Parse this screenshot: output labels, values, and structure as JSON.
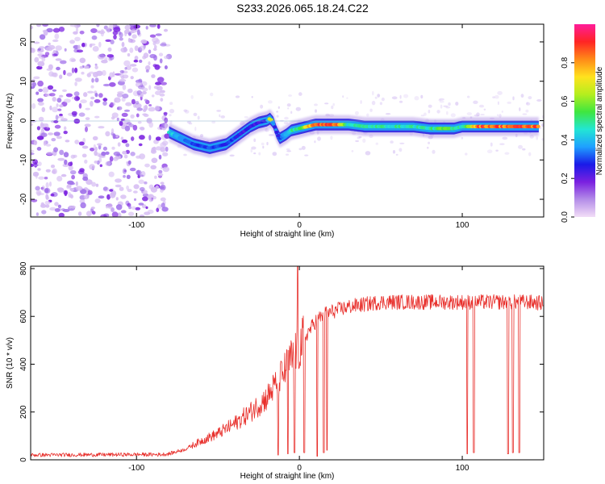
{
  "title": "S233.2026.065.18.24.C22",
  "colors": {
    "snr_line": "#e8302c",
    "colorbar_stops": [
      "#f2ddf7",
      "#b48de8",
      "#7a20e0",
      "#1a1ae8",
      "#1fa0ff",
      "#22e6d4",
      "#3fe63f",
      "#b5ee1e",
      "#ffe21e",
      "#ff8a18",
      "#ff2424",
      "#ff1c9a"
    ]
  },
  "chart_data": [
    {
      "type": "heatmap",
      "title": "",
      "xlabel": "Height of straight line (km)",
      "ylabel": "Frequency (Hz)",
      "xlim": [
        -165,
        150
      ],
      "ylim": [
        -24.5,
        24.5
      ],
      "xticks": [
        -100,
        0,
        100
      ],
      "xtick_labels": [
        "-100",
        "0",
        "100"
      ],
      "yticks": [
        20,
        10,
        0,
        -10,
        -20
      ],
      "ytick_labels": [
        "20",
        "10",
        "0",
        "-10",
        "-20"
      ],
      "colorbar": {
        "label": "Normalized spectral amplitude",
        "range": [
          0,
          1
        ],
        "ticks": [
          0.0,
          0.2,
          0.4,
          0.6,
          0.8
        ],
        "tick_labels": [
          "0.0",
          "0.2",
          "0.4",
          "0.6",
          "0.8"
        ]
      },
      "noise_region_x": [
        -165,
        -80
      ],
      "ridge": {
        "x": [
          -80,
          -75,
          -70,
          -65,
          -60,
          -55,
          -50,
          -45,
          -40,
          -35,
          -30,
          -25,
          -20,
          -18,
          -16,
          -14,
          -12,
          -10,
          -8,
          -5,
          0,
          5,
          10,
          15,
          20,
          30,
          40,
          50,
          60,
          70,
          80,
          90,
          95,
          100,
          110,
          120,
          130,
          140,
          147
        ],
        "freq": [
          -3,
          -4,
          -5,
          -6,
          -6.5,
          -7,
          -6.5,
          -6,
          -4.5,
          -3,
          -1.5,
          -0.5,
          0,
          0.5,
          -0.5,
          -3,
          -4.5,
          -4,
          -3.5,
          -2.5,
          -2,
          -1.5,
          -1,
          -1,
          -1,
          -1,
          -1.5,
          -1.5,
          -1.5,
          -1.5,
          -2,
          -2,
          -2,
          -1.5,
          -1.5,
          -1.5,
          -1.5,
          -1.5,
          -1.5
        ],
        "amplitude": [
          0.45,
          0.4,
          0.35,
          0.3,
          0.3,
          0.35,
          0.3,
          0.3,
          0.3,
          0.25,
          0.25,
          0.25,
          0.3,
          0.85,
          0.3,
          0.25,
          0.3,
          0.35,
          0.4,
          0.5,
          0.55,
          0.75,
          0.9,
          0.95,
          1.0,
          0.5,
          0.5,
          0.5,
          0.5,
          0.5,
          0.5,
          0.6,
          0.5,
          0.5,
          0.9,
          0.9,
          0.9,
          0.9,
          0.9
        ]
      }
    },
    {
      "type": "line",
      "title": "",
      "xlabel": "Height of straight line (km)",
      "ylabel": "SNR (10 * v/v)",
      "xlim": [
        -165,
        150
      ],
      "ylim": [
        0,
        810
      ],
      "xticks": [
        -100,
        0,
        100
      ],
      "xtick_labels": [
        "-100",
        "0",
        "100"
      ],
      "yticks": [
        0,
        200,
        400,
        600,
        800
      ],
      "ytick_labels": [
        "0",
        "200",
        "400",
        "600",
        "800"
      ],
      "envelope": {
        "x": [
          -165,
          -100,
          -85,
          -80,
          -70,
          -60,
          -50,
          -40,
          -30,
          -20,
          -10,
          -5,
          0,
          5,
          10,
          15,
          20,
          30,
          40,
          50,
          60,
          70,
          80,
          100,
          120,
          140,
          150
        ],
        "snr": [
          20,
          22,
          22,
          25,
          45,
          80,
          110,
          150,
          200,
          260,
          360,
          420,
          470,
          530,
          580,
          610,
          620,
          640,
          650,
          660,
          660,
          660,
          660,
          660,
          660,
          660,
          655
        ]
      },
      "dropouts": [
        {
          "x": -13,
          "snr": 20
        },
        {
          "x": -7,
          "snr": 25
        },
        {
          "x": -3,
          "snr": 30
        },
        {
          "x": 3,
          "snr": 30
        },
        {
          "x": 11,
          "snr": 15
        },
        {
          "x": 15,
          "snr": 30
        },
        {
          "x": 17,
          "snr": 40
        },
        {
          "x": 103,
          "snr": 25
        },
        {
          "x": 107,
          "snr": 30
        },
        {
          "x": 128,
          "snr": 25
        },
        {
          "x": 131,
          "snr": 30
        },
        {
          "x": 135,
          "snr": 30
        }
      ],
      "spike": {
        "x": -1,
        "snr": 810
      }
    }
  ]
}
